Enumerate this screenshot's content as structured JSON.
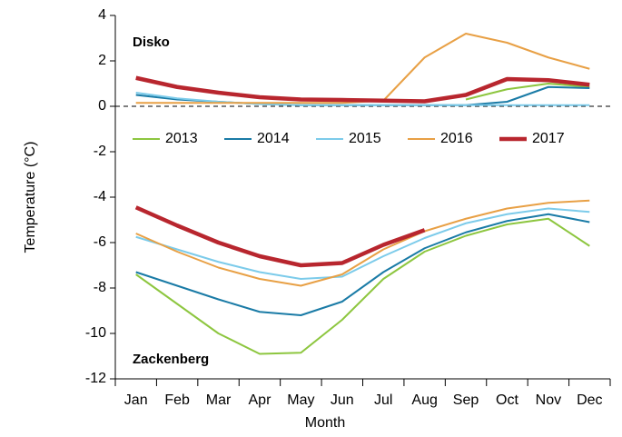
{
  "chart_data": {
    "type": "line",
    "x_label": "Month",
    "y_label": "Temperature (°C)",
    "annotations": [
      "Disko",
      "Zackenberg"
    ],
    "categories": [
      "Jan",
      "Feb",
      "Mar",
      "Apr",
      "May",
      "Jun",
      "Jul",
      "Aug",
      "Sep",
      "Oct",
      "Nov",
      "Dec"
    ],
    "ylim": [
      -12,
      4
    ],
    "yticks": [
      -12,
      -10,
      -8,
      -6,
      -4,
      -2,
      0,
      2,
      4
    ],
    "zero_line": true,
    "series": [
      {
        "name": "2013",
        "color": "#8dc63f",
        "line_width": 2,
        "values": [
          [
            null,
            null,
            null,
            null,
            null,
            null,
            null,
            null,
            0.3,
            0.75,
            1.0,
            0.85
          ],
          [
            -7.4,
            -8.7,
            -10.0,
            -10.9,
            -10.85,
            -9.4,
            -7.6,
            -6.4,
            -5.7,
            -5.2,
            -4.95,
            -6.15
          ]
        ]
      },
      {
        "name": "2014",
        "color": "#1a7ba6",
        "line_width": 2,
        "values": [
          [
            0.5,
            0.3,
            0.2,
            0.1,
            0.05,
            0.05,
            0.05,
            0.05,
            0.05,
            0.2,
            0.85,
            0.8
          ],
          [
            -7.3,
            -7.9,
            -8.5,
            -9.05,
            -9.2,
            -8.6,
            -7.3,
            -6.25,
            -5.55,
            -5.05,
            -4.75,
            -5.1
          ]
        ]
      },
      {
        "name": "2015",
        "color": "#7ccbea",
        "line_width": 2,
        "values": [
          [
            0.6,
            0.35,
            0.2,
            0.1,
            0.05,
            0.05,
            0.05,
            0.05,
            0.05,
            0.05,
            0.05,
            0.05
          ],
          [
            -5.75,
            -6.3,
            -6.85,
            -7.3,
            -7.6,
            -7.5,
            -6.6,
            -5.8,
            -5.15,
            -4.75,
            -4.5,
            -4.65
          ]
        ]
      },
      {
        "name": "2016",
        "color": "#e8a045",
        "line_width": 2,
        "values": [
          [
            0.15,
            0.15,
            0.15,
            0.15,
            0.15,
            0.15,
            0.25,
            2.15,
            3.2,
            2.8,
            2.15,
            1.65
          ],
          [
            -5.6,
            -6.4,
            -7.1,
            -7.6,
            -7.9,
            -7.4,
            -6.3,
            -5.5,
            -4.95,
            -4.5,
            -4.25,
            -4.15
          ]
        ]
      },
      {
        "name": "2017",
        "color": "#b8262e",
        "line_width": 4.5,
        "values": [
          [
            1.25,
            0.85,
            0.6,
            0.4,
            0.3,
            0.28,
            0.25,
            0.22,
            0.5,
            1.2,
            1.15,
            0.95
          ],
          [
            -4.45,
            -5.25,
            -6.0,
            -6.6,
            -7.0,
            -6.9,
            -6.1,
            -5.45,
            null,
            null,
            null,
            null
          ]
        ]
      }
    ]
  }
}
